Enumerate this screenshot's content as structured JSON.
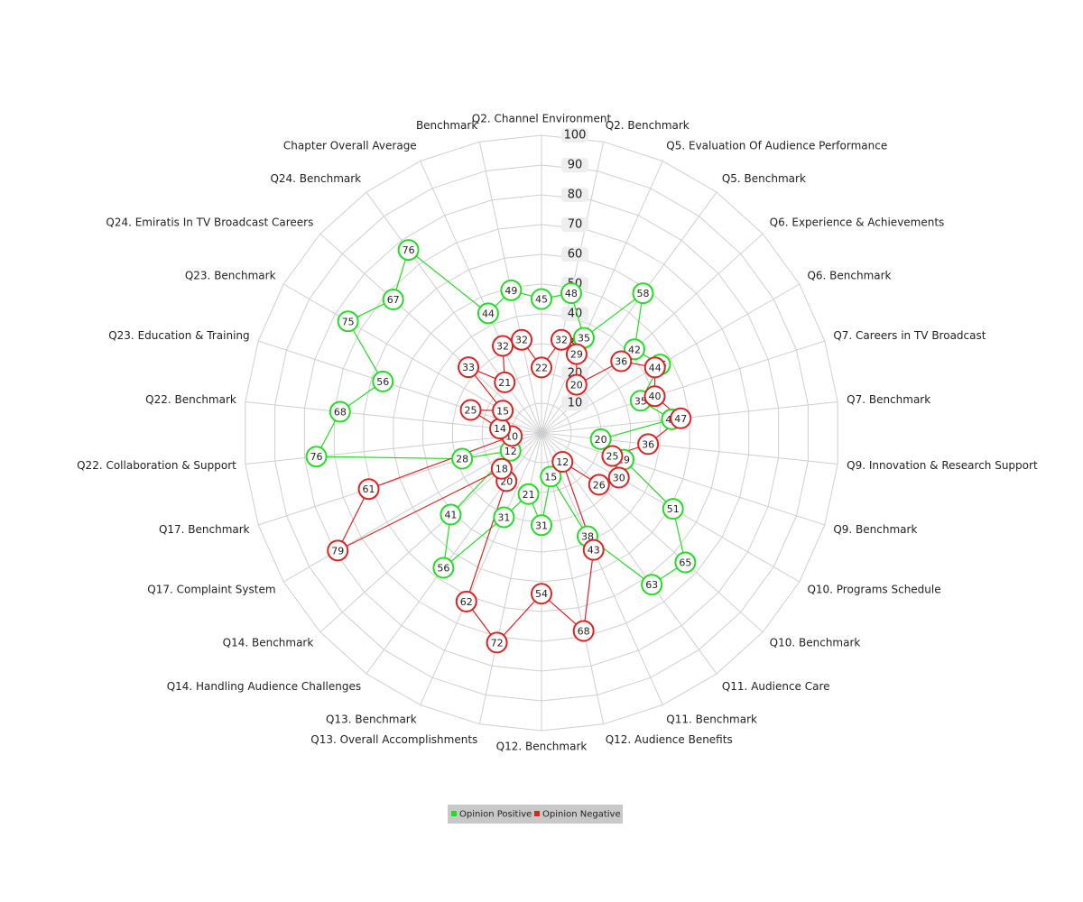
{
  "chart_data": {
    "type": "radar",
    "categories": [
      "Q2. Channel Environment",
      "Q2. Benchmark",
      "Q5. Evaluation Of Audience Performance",
      "Q5. Benchmark",
      "Q6. Experience & Achievements",
      "Q6. Benchmark",
      "Q7. Careers in TV Broadcast",
      "Q7. Benchmark",
      "Q9. Innovation & Research Support",
      "Q9. Benchmark",
      "Q10. Programs Schedule",
      "Q10. Benchmark",
      "Q11. Audience Care",
      "Q11. Benchmark",
      "Q12. Audience Benefits",
      "Q12. Benchmark",
      "Q13. Overall Accomplishments",
      "Q13. Benchmark",
      "Q14. Handling Audience Challenges",
      "Q14. Benchmark",
      "Q17. Complaint System",
      "Q17. Benchmark",
      "Q22. Collaboration & Support",
      "Q22. Benchmark",
      "Q23. Education & Training",
      "Q23. Benchmark",
      "Q24. Emiratis In TV Broadcast Careers",
      "Q24. Benchmark",
      "Chapter Overall Average",
      "Benchmark"
    ],
    "series": [
      {
        "name": "Opinion Positive",
        "color": "#22dd22",
        "values": [
          45,
          48,
          35,
          58,
          42,
          46,
          35,
          44,
          20,
          29,
          51,
          65,
          63,
          38,
          15,
          31,
          21,
          31,
          56,
          41,
          12,
          28,
          76,
          68,
          56,
          75,
          67,
          76,
          44,
          49
        ]
      },
      {
        "name": "Opinion Negative",
        "color": "#dd2222",
        "values": [
          22,
          32,
          29,
          20,
          36,
          44,
          40,
          47,
          36,
          25,
          30,
          26,
          12,
          43,
          68,
          54,
          72,
          62,
          20,
          18,
          79,
          61,
          10,
          14,
          25,
          15,
          33,
          21,
          32,
          32
        ]
      }
    ],
    "ylim": [
      0,
      100
    ],
    "yticks": [
      10,
      20,
      30,
      40,
      50,
      60,
      70,
      80,
      90,
      100
    ],
    "grid": true,
    "legend": "bottom"
  }
}
